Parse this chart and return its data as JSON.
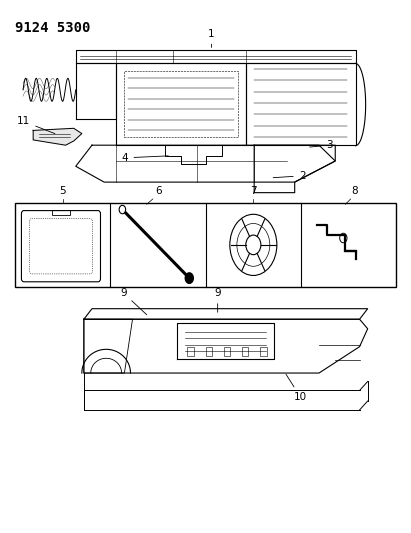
{
  "title": "9124 5300",
  "title_fontsize": 10,
  "bg_color": "#ffffff",
  "line_color": "#000000",
  "fig_width": 4.11,
  "fig_height": 5.33,
  "dpi": 100
}
